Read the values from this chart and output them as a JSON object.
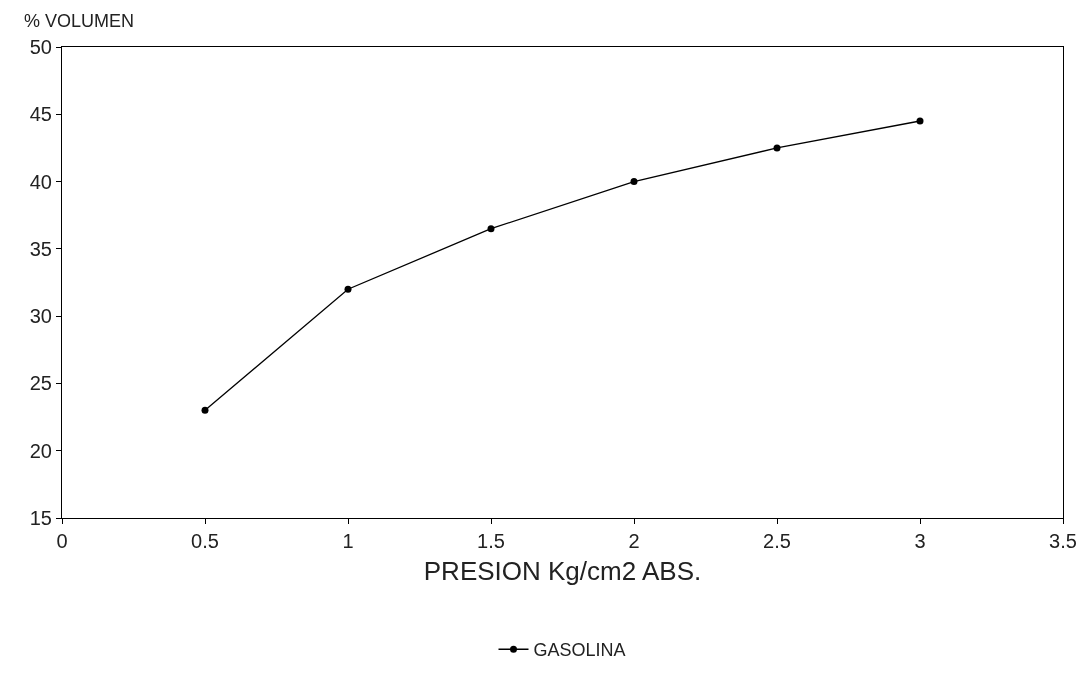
{
  "chart_data": {
    "type": "line",
    "xlabel": "PRESION Kg/cm2 ABS.",
    "ylabel": "% VOLUMEN",
    "x": [
      0.5,
      1,
      1.5,
      2,
      2.5,
      3
    ],
    "series": [
      {
        "name": "GASOLINA",
        "color": "#000000",
        "values": [
          23,
          32,
          36.5,
          40,
          42.5,
          44.5
        ]
      }
    ],
    "xlim": [
      0,
      3.5
    ],
    "xticks": [
      0,
      0.5,
      1,
      1.5,
      2,
      2.5,
      3,
      3.5
    ],
    "ylim": [
      15,
      50
    ],
    "yticks": [
      15,
      20,
      25,
      30,
      35,
      40,
      45,
      50
    ],
    "legend": "bottom",
    "marker": "circle",
    "line_style": "solid"
  }
}
